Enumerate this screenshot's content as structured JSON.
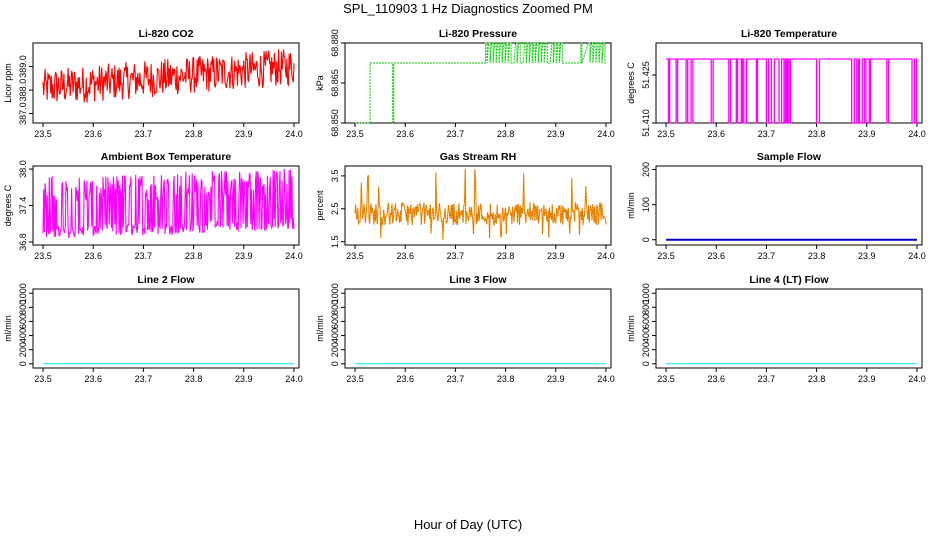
{
  "title": "SPL_110903  1 Hz Diagnostics Zoomed PM",
  "xlabel": "Hour of Day (UTC)",
  "colors": {
    "co2": "#ff0000",
    "pressure": "#00cc00",
    "temperature": "#ff00ff",
    "ambient": "#ff00ff",
    "rh_line": "#ff8c00",
    "rh_point": "#8b5a00",
    "sample_flow": "#0000cc",
    "line_flow": "#00e5ee"
  },
  "chart_data": [
    {
      "id": "co2",
      "type": "line",
      "title": "Li-820 CO2",
      "ylabel": "Licor ppm",
      "xlim": [
        23.48,
        24.01
      ],
      "ylim": [
        386.6,
        390.0
      ],
      "xticks": [
        "23.5",
        "23.6",
        "23.7",
        "23.8",
        "23.9",
        "24.0"
      ],
      "yticks": [
        "387.0",
        "388.0",
        "389.0"
      ],
      "series": [
        {
          "name": "CO2",
          "style": "noisy",
          "start": 23.5,
          "end": 24.0,
          "trend_start": 388.1,
          "trend_end": 389.0,
          "noise": 1.6
        }
      ]
    },
    {
      "id": "pressure",
      "type": "line",
      "title": "Li-820 Pressure",
      "ylabel": "kPa",
      "xlim": [
        23.48,
        24.01
      ],
      "ylim": [
        68.85,
        68.88
      ],
      "xticks": [
        "23.5",
        "23.6",
        "23.7",
        "23.8",
        "23.9",
        "24.0"
      ],
      "yticks": [
        "68.850",
        "68.865",
        "68.880"
      ],
      "levels": [
        68.85,
        68.8725,
        68.88
      ],
      "series": [
        {
          "name": "Pressure",
          "style": "steps"
        }
      ]
    },
    {
      "id": "temperature",
      "type": "line",
      "title": "Li-820 Temperature",
      "ylabel": "degrees C",
      "xlim": [
        23.48,
        24.01
      ],
      "ylim": [
        51.41,
        51.435
      ],
      "xticks": [
        "23.5",
        "23.6",
        "23.7",
        "23.8",
        "23.9",
        "24.0"
      ],
      "yticks": [
        "51.410",
        "51.425"
      ],
      "levels": [
        51.41,
        51.43
      ],
      "series": [
        {
          "name": "Temperature",
          "style": "dips"
        }
      ]
    },
    {
      "id": "ambient",
      "type": "line",
      "title": "Ambient Box Temperature",
      "ylabel": "degrees C",
      "xlim": [
        23.48,
        24.01
      ],
      "ylim": [
        36.75,
        38.05
      ],
      "xticks": [
        "23.5",
        "23.6",
        "23.7",
        "23.8",
        "23.9",
        "24.0"
      ],
      "yticks": [
        "36.8",
        "37.4",
        "38.0"
      ],
      "series": [
        {
          "name": "Ambient",
          "style": "noisy",
          "start": 23.5,
          "end": 24.0,
          "trend_start": 37.3,
          "trend_end": 37.45,
          "noise": 1.0
        }
      ]
    },
    {
      "id": "rh",
      "type": "line",
      "title": "Gas Stream RH",
      "ylabel": "percent",
      "xlim": [
        23.48,
        24.01
      ],
      "ylim": [
        1.4,
        3.8
      ],
      "xticks": [
        "23.5",
        "23.6",
        "23.7",
        "23.8",
        "23.9",
        "24.0"
      ],
      "yticks": [
        "1.5",
        "2.5",
        "3.5"
      ],
      "series": [
        {
          "name": "RH",
          "style": "noisy",
          "start": 23.5,
          "end": 24.0,
          "trend_start": 2.35,
          "trend_end": 2.35,
          "noise": 0.7
        }
      ]
    },
    {
      "id": "sample",
      "type": "line",
      "title": "Sample Flow",
      "ylabel": "ml/min",
      "xlim": [
        23.48,
        24.01
      ],
      "ylim": [
        -15,
        210
      ],
      "xticks": [
        "23.5",
        "23.6",
        "23.7",
        "23.8",
        "23.9",
        "24.0"
      ],
      "yticks": [
        "0",
        "100",
        "200"
      ],
      "series": [
        {
          "name": "Sample Flow",
          "style": "flat",
          "value": 0
        }
      ]
    },
    {
      "id": "line2",
      "type": "line",
      "title": "Line 2 Flow",
      "ylabel": "ml/min",
      "xlim": [
        23.48,
        24.01
      ],
      "ylim": [
        -60,
        1060
      ],
      "xticks": [
        "23.5",
        "23.6",
        "23.7",
        "23.8",
        "23.9",
        "24.0"
      ],
      "yticks": [
        "0",
        "200",
        "400",
        "600",
        "800",
        "1000"
      ],
      "series": [
        {
          "name": "Line 2 Flow",
          "style": "flat",
          "value": 0
        }
      ]
    },
    {
      "id": "line3",
      "type": "line",
      "title": "Line 3 Flow",
      "ylabel": "ml/min",
      "xlim": [
        23.48,
        24.01
      ],
      "ylim": [
        -60,
        1060
      ],
      "xticks": [
        "23.5",
        "23.6",
        "23.7",
        "23.8",
        "23.9",
        "24.0"
      ],
      "yticks": [
        "0",
        "200",
        "400",
        "600",
        "800",
        "1000"
      ],
      "series": [
        {
          "name": "Line 3 Flow",
          "style": "flat",
          "value": 0
        }
      ]
    },
    {
      "id": "line4",
      "type": "line",
      "title": "Line 4 (LT) Flow",
      "ylabel": "ml/min",
      "xlim": [
        23.48,
        24.01
      ],
      "ylim": [
        -60,
        1060
      ],
      "xticks": [
        "23.5",
        "23.6",
        "23.7",
        "23.8",
        "23.9",
        "24.0"
      ],
      "yticks": [
        "0",
        "200",
        "400",
        "600",
        "800",
        "1000"
      ],
      "series": [
        {
          "name": "Line 4 (LT) Flow",
          "style": "flat",
          "value": 0
        }
      ]
    }
  ]
}
